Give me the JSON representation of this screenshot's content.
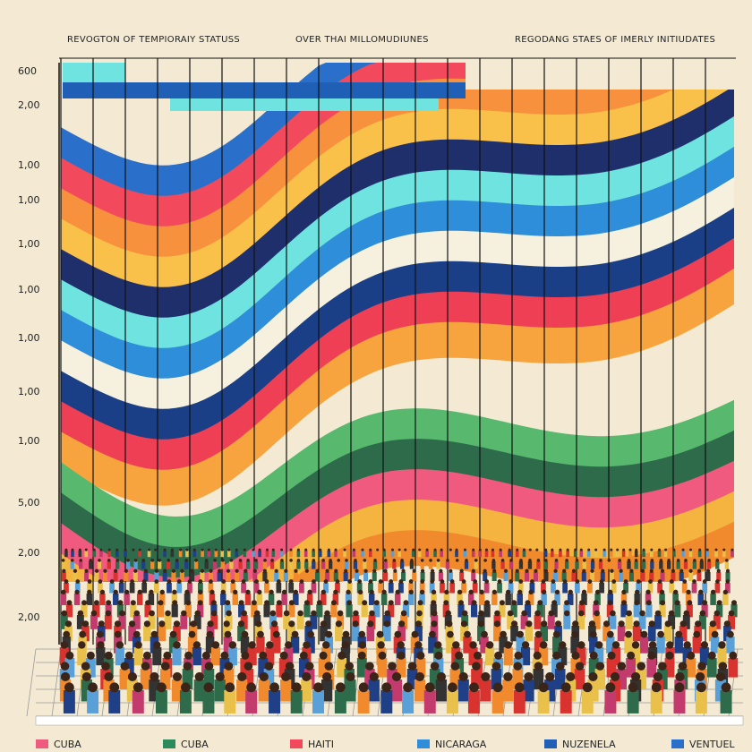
{
  "header": {
    "titles": [
      "REVOGTON OF TEMPIORAIY STATUSS",
      "OVER THAI MILLOMUDIUNES",
      "REGODANG STAES OF IMERLY INITIUDATES"
    ]
  },
  "axis": {
    "labels": [
      "600",
      "2,00",
      "1,00",
      "1,00",
      "1,00",
      "1,00",
      "1,00",
      "1,00",
      "1,00",
      "5,00",
      "2,00",
      "2,00"
    ]
  },
  "legend": {
    "items": [
      "CUBA",
      "CUBA",
      "HAITI",
      "NICARAGA",
      "NUZENELA",
      "VENTUEL"
    ]
  }
}
